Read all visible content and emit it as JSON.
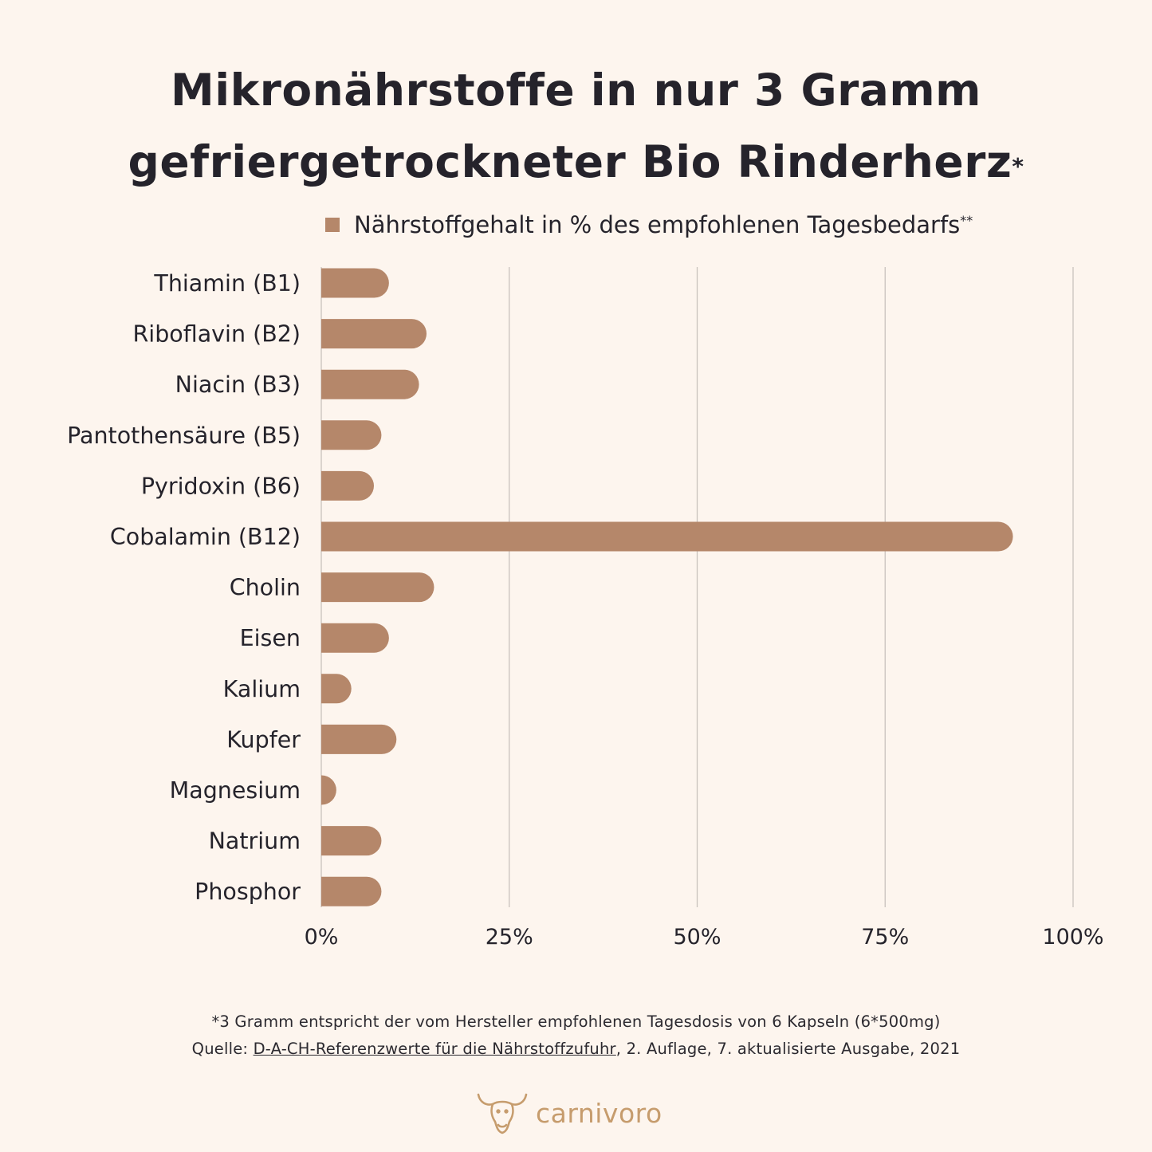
{
  "title": {
    "line1": "Mikronährstoffe in nur 3 Gramm",
    "line2": "gefriergetrockneter Bio Rinderherz",
    "line2_mark": "*"
  },
  "legend": {
    "label": "Nährstoffgehalt in % des empfohlenen Tagesbedarfs",
    "mark": "**"
  },
  "chart_data": {
    "type": "bar",
    "orientation": "horizontal",
    "categories": [
      "Thiamin (B1)",
      "Riboflavin (B2)",
      "Niacin (B3)",
      "Pantothensäure (B5)",
      "Pyridoxin (B6)",
      "Cobalamin (B12)",
      "Cholin",
      "Eisen",
      "Kalium",
      "Kupfer",
      "Magnesium",
      "Natrium",
      "Phosphor"
    ],
    "series": [
      {
        "name": "Nährstoffgehalt in % des empfohlenen Tagesbedarfs",
        "values": [
          9,
          14,
          13,
          8,
          7,
          92,
          15,
          9,
          4,
          10,
          2,
          8,
          8
        ]
      }
    ],
    "xlim": [
      0,
      100
    ],
    "xticks": [
      "0%",
      "25%",
      "50%",
      "75%",
      "100%"
    ],
    "xtick_values": [
      0,
      25,
      50,
      75,
      100
    ],
    "grid": "vertical",
    "legend_position": "top",
    "bar_color": "#b5876a",
    "grid_color": "#c9c2bd"
  },
  "footnotes": {
    "line1": "*3 Gramm entspricht der vom Hersteller empfohlenen Tagesdosis von 6 Kapseln (6*500mg)",
    "line2_prefix": "Quelle: ",
    "line2_link": "D-A-CH-Referenzwerte für die Nährstoffzufuhr",
    "line2_suffix": ", 2. Auflage, 7. aktualisierte Ausgabe, 2021"
  },
  "brand": {
    "name": "carnivoro",
    "logo_icon": "bull-head-icon",
    "color": "#c69c6d"
  }
}
